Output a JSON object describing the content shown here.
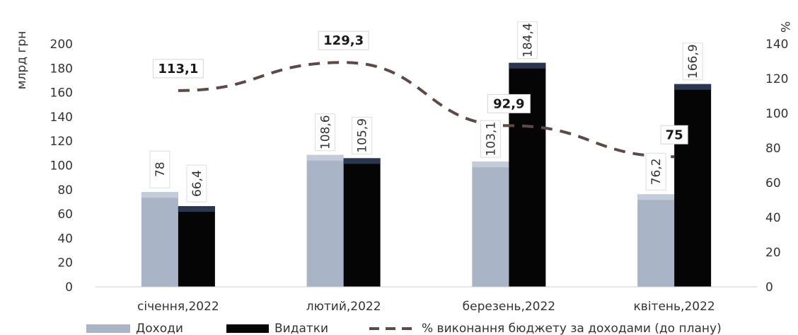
{
  "chart_data": {
    "type": "bar",
    "categories": [
      "січення,2022",
      "лютий,2022",
      "березень,2022",
      "квітень,2022"
    ],
    "series": [
      {
        "name": "Доходи",
        "kind": "bar",
        "axis": "left",
        "color": "#a9b4c6",
        "values": [
          78,
          108.6,
          103.1,
          76.2
        ],
        "labels": [
          "78",
          "108,6",
          "103,1",
          "76,2"
        ]
      },
      {
        "name": "Видатки",
        "kind": "bar",
        "axis": "left",
        "color": "#050505",
        "values": [
          66.4,
          105.9,
          184.4,
          166.9
        ],
        "labels": [
          "66,4",
          "105,9",
          "184,4",
          "166,9"
        ]
      },
      {
        "name": "% виконання бюджету за доходами (до плану)",
        "kind": "line",
        "style": "dashed",
        "axis": "right",
        "color": "#5a4a4a",
        "values": [
          113.1,
          129.3,
          92.9,
          75
        ],
        "labels": [
          "113,1",
          "129,3",
          "92,9",
          "75"
        ]
      }
    ],
    "ylabel": "млрд грн",
    "y2label": "%",
    "ylim": [
      0,
      200
    ],
    "y2lim": [
      0,
      140
    ],
    "yticks": [
      "0",
      "20",
      "40",
      "60",
      "80",
      "100",
      "120",
      "140",
      "160",
      "180",
      "200"
    ],
    "y2ticks": [
      "0",
      "20",
      "40",
      "60",
      "80",
      "100",
      "120",
      "140"
    ],
    "grid": false,
    "legend_position": "bottom"
  }
}
